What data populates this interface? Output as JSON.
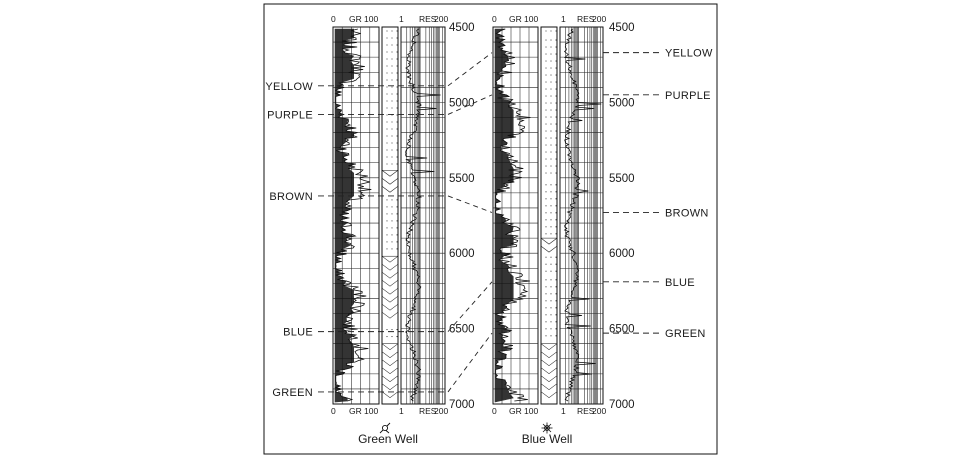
{
  "depth_scale": {
    "min": 4500,
    "max": 7000,
    "labels": [
      "4500",
      "5000",
      "5500",
      "6000",
      "6500",
      "7000"
    ]
  },
  "track_headers": {
    "gr_min": "0",
    "gr_name": "GR",
    "gr_max": "100",
    "res_min": "1",
    "res_name": "RES",
    "res_max": "200"
  },
  "wells": [
    {
      "name": "Green Well",
      "symbol": "gas-well-icon",
      "marker_side": "left",
      "markers": [
        {
          "label": "YELLOW",
          "depth": 4890
        },
        {
          "label": "PURPLE",
          "depth": 5080
        },
        {
          "label": "BROWN",
          "depth": 5620
        },
        {
          "label": "BLUE",
          "depth": 6520
        },
        {
          "label": "GREEN",
          "depth": 6920
        }
      ]
    },
    {
      "name": "Blue Well",
      "symbol": "dry-hole-icon",
      "marker_side": "right",
      "markers": [
        {
          "label": "YELLOW",
          "depth": 4670
        },
        {
          "label": "PURPLE",
          "depth": 4950
        },
        {
          "label": "BROWN",
          "depth": 5730
        },
        {
          "label": "BLUE",
          "depth": 6190
        },
        {
          "label": "GREEN",
          "depth": 6530
        }
      ]
    }
  ],
  "colors": {
    "ink": "#111111",
    "background": "#ffffff"
  }
}
